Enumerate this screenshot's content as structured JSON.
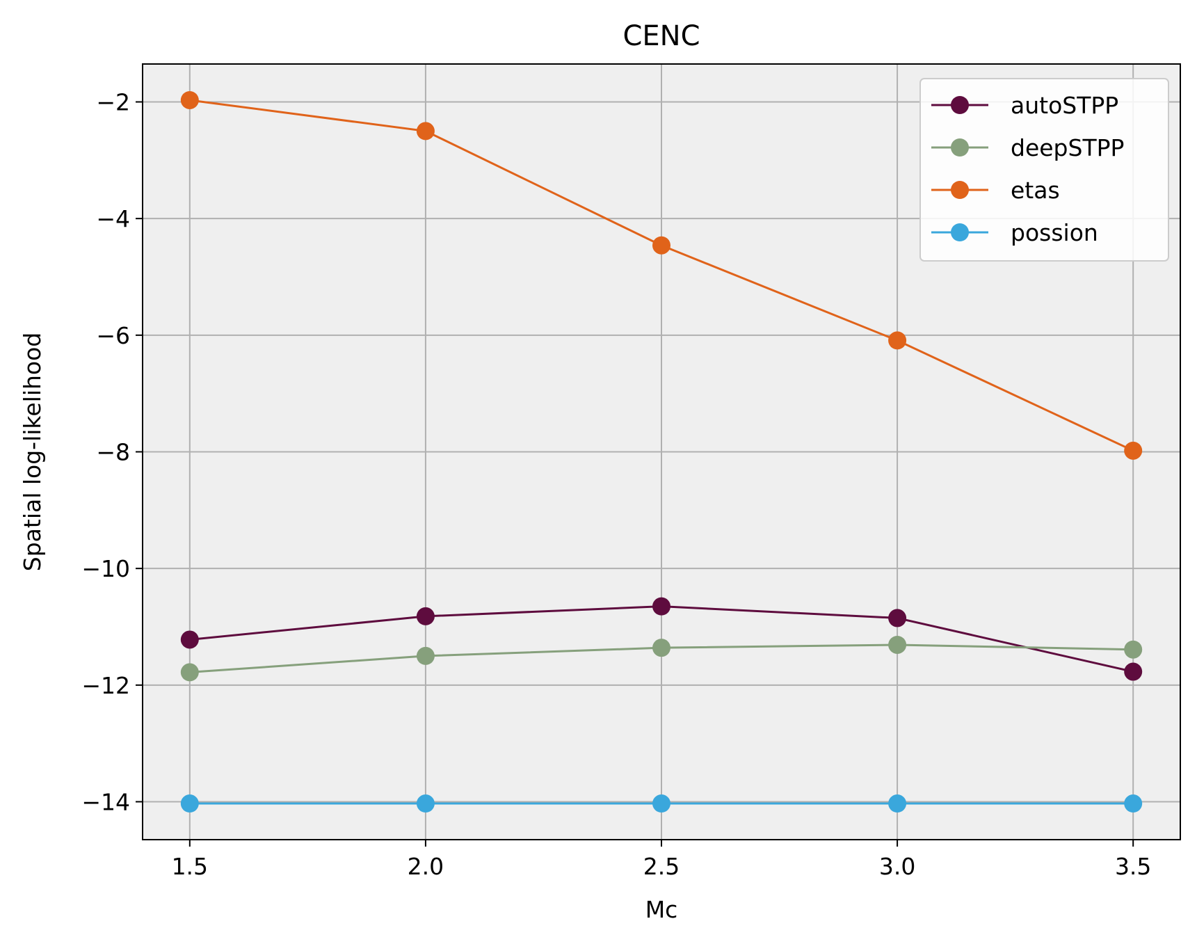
{
  "chart_data": {
    "type": "line",
    "title": "CENC",
    "xlabel": "Mc",
    "ylabel": "Spatial log-likelihood",
    "x": [
      1.5,
      2.0,
      2.5,
      3.0,
      3.5
    ],
    "x_tick_labels": [
      "1.5",
      "2.0",
      "2.5",
      "3.0",
      "3.5"
    ],
    "y_ticks": [
      -2,
      -4,
      -6,
      -8,
      -10,
      -12,
      -14
    ],
    "y_tick_labels": [
      "−2",
      "−4",
      "−6",
      "−8",
      "−10",
      "−12",
      "−14"
    ],
    "xlim": [
      1.4,
      3.6
    ],
    "ylim": [
      -14.65,
      -1.35
    ],
    "grid": true,
    "legend_position": "top-right",
    "plot_background": "#efefef",
    "series": [
      {
        "name": "autoSTPP",
        "color": "#5e0c3e",
        "values": [
          -11.22,
          -10.82,
          -10.65,
          -10.85,
          -11.77
        ]
      },
      {
        "name": "deepSTPP",
        "color": "#86a07c",
        "values": [
          -11.78,
          -11.5,
          -11.36,
          -11.31,
          -11.39
        ]
      },
      {
        "name": "etas",
        "color": "#e0631a",
        "values": [
          -1.97,
          -2.5,
          -4.46,
          -6.09,
          -7.98
        ]
      },
      {
        "name": "possion",
        "color": "#3aa7dc",
        "values": [
          -14.03,
          -14.03,
          -14.03,
          -14.03,
          -14.03
        ]
      }
    ]
  }
}
